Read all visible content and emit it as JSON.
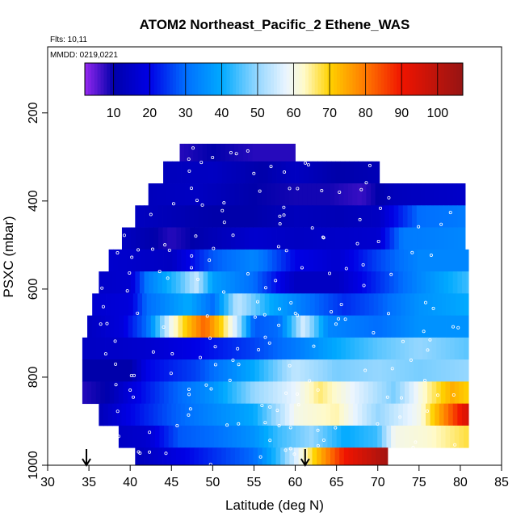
{
  "chart_data": {
    "type": "heatmap",
    "title": "ATOM2 Northeast_Pacific_2 Ethene_WAS",
    "flights_label": "Flts: 10,11",
    "dates_label": "MMDD: 0219,0221",
    "xlabel": "Latitude (deg N)",
    "ylabel": "PSXC (mbar)",
    "xlim": [
      30,
      85
    ],
    "ylim": [
      1000,
      50
    ],
    "y_reversed": true,
    "x_ticks": [
      "30",
      "35",
      "40",
      "45",
      "50",
      "55",
      "60",
      "65",
      "70",
      "75",
      "80",
      "85"
    ],
    "y_ticks": [
      "200",
      "400",
      "600",
      "800",
      "1000"
    ],
    "colorbar": {
      "min": 2,
      "max": 107,
      "tick_values": [
        10,
        20,
        30,
        40,
        50,
        60,
        70,
        80,
        90,
        100
      ],
      "tick_labels": [
        "10",
        "20",
        "30",
        "40",
        "50",
        "60",
        "70",
        "80",
        "90",
        "100"
      ]
    },
    "arrows_lat": [
      34.7,
      61.2
    ],
    "bands": [
      {
        "p0": 270,
        "p1": 310,
        "lat0": 46.0,
        "lat1": 60.0,
        "knots": [
          [
            46,
            8
          ],
          [
            50,
            10
          ],
          [
            55,
            8
          ],
          [
            60,
            8
          ]
        ]
      },
      {
        "p0": 310,
        "p1": 360,
        "lat0": 44.0,
        "lat1": 70.2,
        "knots": [
          [
            44,
            13
          ],
          [
            50,
            14
          ],
          [
            56,
            10
          ],
          [
            60,
            14
          ],
          [
            65,
            10
          ],
          [
            70,
            12
          ]
        ]
      },
      {
        "p0": 360,
        "p1": 410,
        "lat0": 42.2,
        "lat1": 80.6,
        "knots": [
          [
            42,
            13
          ],
          [
            48,
            14
          ],
          [
            55,
            10
          ],
          [
            60,
            9
          ],
          [
            64,
            9
          ],
          [
            68,
            7
          ],
          [
            72,
            13
          ],
          [
            80,
            15
          ]
        ]
      },
      {
        "p0": 410,
        "p1": 460,
        "lat0": 40.6,
        "lat1": 80.6,
        "knots": [
          [
            40,
            14
          ],
          [
            45,
            12
          ],
          [
            50,
            10
          ],
          [
            55,
            10
          ],
          [
            60,
            13
          ],
          [
            65,
            12
          ],
          [
            70,
            14
          ],
          [
            75,
            30
          ],
          [
            80,
            32
          ]
        ]
      },
      {
        "p0": 460,
        "p1": 510,
        "lat0": 39.0,
        "lat1": 80.6,
        "knots": [
          [
            39,
            14
          ],
          [
            45,
            8
          ],
          [
            50,
            12
          ],
          [
            55,
            16
          ],
          [
            60,
            14
          ],
          [
            65,
            15
          ],
          [
            70,
            16
          ],
          [
            73,
            32
          ],
          [
            80,
            34
          ]
        ]
      },
      {
        "p0": 510,
        "p1": 560,
        "lat0": 37.4,
        "lat1": 81.0,
        "knots": [
          [
            37,
            16
          ],
          [
            45,
            14
          ],
          [
            50,
            28
          ],
          [
            55,
            34
          ],
          [
            60,
            20
          ],
          [
            65,
            16
          ],
          [
            70,
            26
          ],
          [
            75,
            34
          ],
          [
            81,
            34
          ]
        ]
      },
      {
        "p0": 560,
        "p1": 610,
        "lat0": 36.2,
        "lat1": 81.0,
        "knots": [
          [
            36,
            15
          ],
          [
            40,
            16
          ],
          [
            42,
            32
          ],
          [
            46,
            45
          ],
          [
            48,
            54
          ],
          [
            50,
            38
          ],
          [
            55,
            30
          ],
          [
            60,
            14
          ],
          [
            65,
            14
          ],
          [
            70,
            24
          ],
          [
            75,
            34
          ],
          [
            81,
            44
          ]
        ]
      },
      {
        "p0": 610,
        "p1": 660,
        "lat0": 35.4,
        "lat1": 81.0,
        "knots": [
          [
            35,
            16
          ],
          [
            40,
            18
          ],
          [
            42,
            30
          ],
          [
            47,
            40
          ],
          [
            50,
            30
          ],
          [
            53,
            54
          ],
          [
            57,
            40
          ],
          [
            62,
            30
          ],
          [
            66,
            24
          ],
          [
            70,
            28
          ],
          [
            75,
            36
          ],
          [
            81,
            40
          ]
        ]
      },
      {
        "p0": 660,
        "p1": 710,
        "lat0": 34.8,
        "lat1": 81.0,
        "knots": [
          [
            35,
            14
          ],
          [
            39,
            18
          ],
          [
            42,
            30
          ],
          [
            45,
            60
          ],
          [
            47,
            72
          ],
          [
            49,
            82
          ],
          [
            51,
            70
          ],
          [
            53,
            54
          ],
          [
            55,
            28
          ],
          [
            58,
            30
          ],
          [
            61,
            56
          ],
          [
            64,
            34
          ],
          [
            70,
            30
          ],
          [
            75,
            36
          ],
          [
            81,
            36
          ]
        ]
      },
      {
        "p0": 710,
        "p1": 760,
        "lat0": 34.2,
        "lat1": 81.0,
        "knots": [
          [
            34,
            14
          ],
          [
            42,
            16
          ],
          [
            48,
            20
          ],
          [
            55,
            26
          ],
          [
            60,
            32
          ],
          [
            65,
            40
          ],
          [
            70,
            46
          ],
          [
            75,
            50
          ],
          [
            81,
            46
          ]
        ]
      },
      {
        "p0": 760,
        "p1": 810,
        "lat0": 34.2,
        "lat1": 81.0,
        "knots": [
          [
            34,
            10
          ],
          [
            40,
            10
          ],
          [
            42,
            20
          ],
          [
            48,
            26
          ],
          [
            55,
            40
          ],
          [
            60,
            54
          ],
          [
            65,
            48
          ],
          [
            70,
            50
          ],
          [
            75,
            48
          ],
          [
            81,
            50
          ]
        ]
      },
      {
        "p0": 810,
        "p1": 860,
        "lat0": 34.2,
        "lat1": 81.0,
        "knots": [
          [
            34,
            8
          ],
          [
            37,
            10
          ],
          [
            40,
            18
          ],
          [
            45,
            28
          ],
          [
            50,
            36
          ],
          [
            55,
            50
          ],
          [
            60,
            58
          ],
          [
            63,
            66
          ],
          [
            68,
            56
          ],
          [
            72,
            48
          ],
          [
            76,
            64
          ],
          [
            79,
            74
          ],
          [
            81,
            70
          ]
        ]
      },
      {
        "p0": 860,
        "p1": 910,
        "lat0": 36.2,
        "lat1": 81.0,
        "knots": [
          [
            36,
            12
          ],
          [
            40,
            20
          ],
          [
            45,
            28
          ],
          [
            50,
            34
          ],
          [
            55,
            40
          ],
          [
            60,
            60
          ],
          [
            65,
            64
          ],
          [
            70,
            50
          ],
          [
            75,
            60
          ],
          [
            78,
            78
          ],
          [
            81,
            96
          ]
        ]
      },
      {
        "p0": 910,
        "p1": 960,
        "lat0": 38.6,
        "lat1": 81.0,
        "knots": [
          [
            38,
            14
          ],
          [
            42,
            16
          ],
          [
            46,
            28
          ],
          [
            50,
            30
          ],
          [
            55,
            36
          ],
          [
            58,
            44
          ],
          [
            62,
            50
          ],
          [
            66,
            40
          ],
          [
            70,
            44
          ],
          [
            72,
            60
          ],
          [
            76,
            62
          ],
          [
            81,
            68
          ]
        ]
      },
      {
        "p0": 960,
        "p1": 1000,
        "lat0": 40.6,
        "lat1": 71.2,
        "knots": [
          [
            40,
            12
          ],
          [
            45,
            18
          ],
          [
            50,
            24
          ],
          [
            55,
            30
          ],
          [
            58,
            44
          ],
          [
            61,
            62
          ],
          [
            63,
            74
          ],
          [
            66,
            90
          ],
          [
            69,
            98
          ],
          [
            71,
            104
          ]
        ]
      }
    ]
  }
}
